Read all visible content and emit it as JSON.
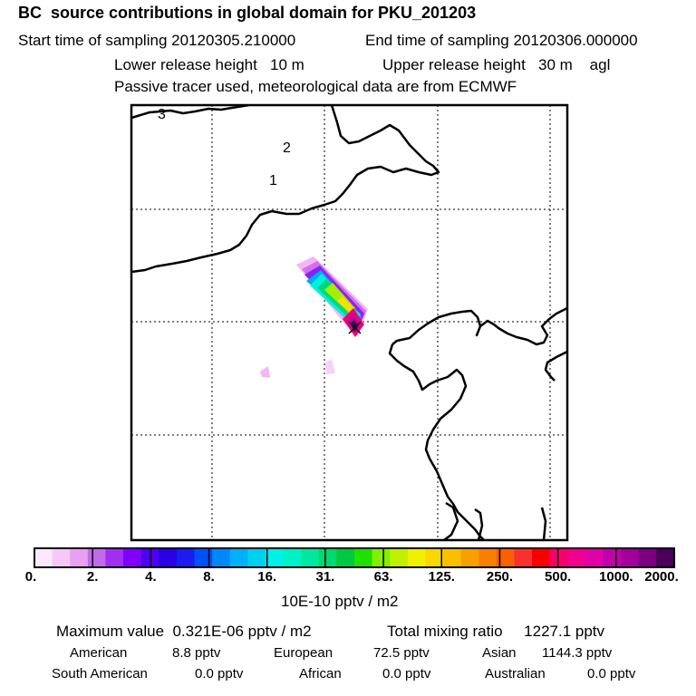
{
  "header": {
    "title": "BC  source contributions in global domain for PKU_201203",
    "start_label": "Start time of sampling 20120305.210000",
    "end_label": "End time of sampling 20120306.000000",
    "lower_height_label": "Lower release height   10 m",
    "upper_height_label": "Upper release height   30 m    agl",
    "tracer_note": "Passive tracer used, meteorological data are from ECMWF"
  },
  "map": {
    "day_labels": [
      "3",
      "2",
      "1"
    ],
    "release_site_marker": "x-marker"
  },
  "colorbar": {
    "tick_labels": [
      "0.",
      "2.",
      "4.",
      "8.",
      "16.",
      "31.",
      "63.",
      "125.",
      "250.",
      "500.",
      "1000.",
      "2000."
    ],
    "colors": [
      "#fce8fc",
      "#f6c8f6",
      "#e8a0f0",
      "#c06ce8",
      "#a030f0",
      "#8000f8",
      "#5000f0",
      "#2a00e6",
      "#1c1cf0",
      "#0050f8",
      "#0088f8",
      "#00b0f8",
      "#00d0f0",
      "#00f0e8",
      "#00f0c8",
      "#00e8a0",
      "#00d870",
      "#00c840",
      "#20e000",
      "#80f000",
      "#c0f000",
      "#f0f000",
      "#f8d800",
      "#f8c000",
      "#f8a000",
      "#f88000",
      "#f86000",
      "#f83030",
      "#f80000",
      "#f8006a",
      "#f00090",
      "#e000a8",
      "#c000a8",
      "#a00098",
      "#7a0080",
      "#4a0058"
    ],
    "unit_label": "10E-10 pptv / m2"
  },
  "summary": {
    "max_value": "Maximum value  0.321E-06 pptv / m2",
    "total_mixing_ratio": "Total mixing ratio     1227.1 pptv",
    "american_label": "American",
    "american_value": "8.8 pptv",
    "european_label": "European",
    "european_value": "72.5 pptv",
    "asian_label": "Asian",
    "asian_value": "1144.3 pptv",
    "south_american_label": "South American",
    "south_american_value": "0.0 pptv",
    "african_label": "African",
    "african_value": "0.0 pptv",
    "australian_label": "Australian",
    "australian_value": "0.0 pptv"
  }
}
